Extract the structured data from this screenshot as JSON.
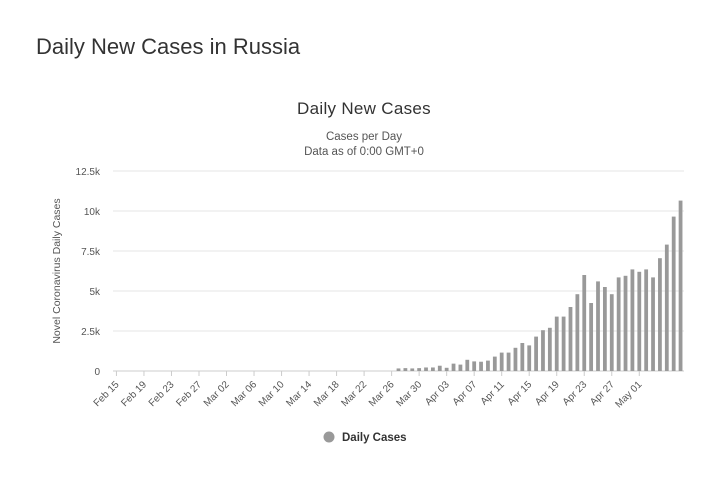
{
  "page": {
    "heading": "Daily New Cases in Russia"
  },
  "chart_data": {
    "type": "bar",
    "title": "Daily New Cases",
    "subtitle_lines": [
      "Cases per Day",
      "Data as of 0:00 GMT+0"
    ],
    "ylabel": "Novel Coronavirus Daily Cases",
    "xlabel": "",
    "ylim": [
      0,
      12500
    ],
    "y_ticks": [
      0,
      2500,
      5000,
      7500,
      10000,
      12500
    ],
    "y_tick_labels": [
      "0",
      "2.5k",
      "5k",
      "7.5k",
      "10k",
      "12.5k"
    ],
    "x_tick_labels": [
      "Feb 15",
      "Feb 19",
      "Feb 23",
      "Feb 27",
      "Mar 02",
      "Mar 06",
      "Mar 10",
      "Mar 14",
      "Mar 18",
      "Mar 22",
      "Mar 26",
      "Mar 30",
      "Apr 03",
      "Apr 07",
      "Apr 11",
      "Apr 15",
      "Apr 19",
      "Apr 23",
      "Apr 27",
      "May 01"
    ],
    "start_date": "2020-02-15",
    "series": [
      {
        "name": "Daily Cases",
        "color": "#999999",
        "values": [
          0,
          0,
          0,
          0,
          0,
          0,
          0,
          0,
          0,
          0,
          0,
          0,
          0,
          0,
          0,
          0,
          0,
          0,
          0,
          0,
          0,
          0,
          0,
          0,
          0,
          0,
          0,
          0,
          0,
          0,
          0,
          0,
          0,
          0,
          0,
          0,
          0,
          0,
          0,
          0,
          0,
          160,
          180,
          160,
          180,
          220,
          220,
          330,
          200,
          460,
          400,
          700,
          600,
          580,
          650,
          900,
          1150,
          1150,
          1450,
          1750,
          1600,
          2150,
          2550,
          2700,
          3400,
          3400,
          4000,
          4800,
          6000,
          4250,
          5600,
          5250,
          4800,
          5850,
          5950,
          6350,
          6200,
          6350,
          5850,
          7050,
          7900,
          9650,
          10650
        ]
      }
    ],
    "legend": {
      "placement": "bottom-center",
      "label": "Daily Cases"
    },
    "grid": "horizontal"
  }
}
